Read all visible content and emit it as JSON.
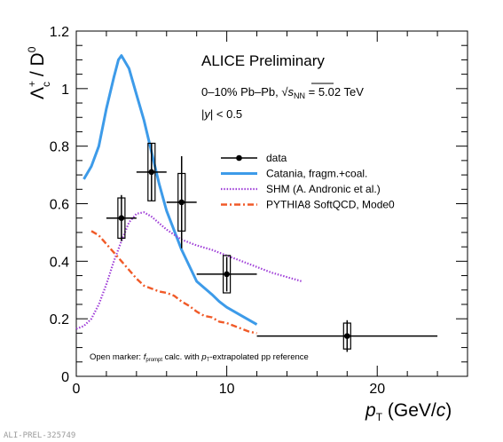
{
  "chart_data": {
    "type": "line",
    "title": "ALICE Preliminary",
    "annotations": {
      "collision_prefix": "0–10% Pb–Pb, ",
      "sqrt_symbol": "√",
      "sqrt_s": "s",
      "sqrt_sub": "NN",
      "energy": " = 5.02 TeV",
      "rapidity_prefix": "|",
      "rapidity_y": "y",
      "rapidity_suffix": "| < 0.5"
    },
    "footnote": {
      "part1": "Open marker: ",
      "f": "f",
      "f_sub": "prompt",
      "part2": " calc. with ",
      "p": "p",
      "p_sub": "T",
      "part3": "-extrapolated pp reference"
    },
    "watermark": "ALI-PREL-325749",
    "xlabel": {
      "main": "p",
      "sub": "T",
      "rest": " (GeV/",
      "c": "c",
      "close": ")"
    },
    "ylabel": {
      "lambda": "Λ",
      "sup": "+",
      "sub": "c",
      "rest": " / D",
      "d_sup": "0"
    },
    "xlim": [
      0,
      26
    ],
    "ylim": [
      0,
      1.2
    ],
    "xticks": [
      0,
      10,
      20
    ],
    "xtick_labels": [
      "0",
      "10",
      "20"
    ],
    "yticks": [
      0,
      0.2,
      0.4,
      0.6,
      0.8,
      1.0,
      1.2
    ],
    "ytick_labels": [
      "0",
      "0.2",
      "0.4",
      "0.6",
      "0.8",
      "1",
      "1.2"
    ],
    "legend_position": "center-right",
    "legend": [
      {
        "label": "data",
        "kind": "marker",
        "color": "#000000"
      },
      {
        "label": "Catania, fragm.+coal.",
        "kind": "solid",
        "color": "#3d9be9"
      },
      {
        "label": "SHM (A. Andronic et al.)",
        "kind": "dotted",
        "color": "#a040d8"
      },
      {
        "label": "PYTHIA8 SoftQCD, Mode0",
        "kind": "dashdot",
        "color": "#f05a28"
      }
    ],
    "series": [
      {
        "name": "data",
        "kind": "points",
        "color": "#000000",
        "points": [
          {
            "x": 3.0,
            "y": 0.55,
            "xerr": 1.0,
            "yerr": 0.08,
            "syst": 0.07
          },
          {
            "x": 5.0,
            "y": 0.71,
            "xerr": 1.0,
            "yerr": 0.1,
            "syst": 0.1
          },
          {
            "x": 7.0,
            "y": 0.605,
            "xerr": 1.0,
            "yerr": 0.16,
            "syst": 0.1
          },
          {
            "x": 10.0,
            "y": 0.355,
            "xerr": 2.0,
            "yerr": 0.06,
            "syst": 0.065
          },
          {
            "x": 18.0,
            "y": 0.14,
            "xerr": 6.0,
            "yerr": 0.055,
            "syst": 0.045
          }
        ]
      },
      {
        "name": "Catania, fragm.+coal.",
        "kind": "solid",
        "color": "#3d9be9",
        "x": [
          0.5,
          1.0,
          1.5,
          2.0,
          2.5,
          2.8,
          3.0,
          3.5,
          4.0,
          4.5,
          5.0,
          5.5,
          6.0,
          7.0,
          8.0,
          9.0,
          9.5,
          10.0,
          11.0,
          12.0
        ],
        "y": [
          0.685,
          0.73,
          0.8,
          0.93,
          1.04,
          1.1,
          1.115,
          1.07,
          0.98,
          0.89,
          0.78,
          0.67,
          0.575,
          0.44,
          0.33,
          0.285,
          0.26,
          0.24,
          0.21,
          0.18
        ]
      },
      {
        "name": "SHM (A. Andronic et al.)",
        "kind": "dotted",
        "color": "#a040d8",
        "x": [
          0.0,
          0.5,
          1.0,
          1.5,
          2.0,
          2.5,
          3.0,
          3.5,
          4.0,
          4.5,
          5.0,
          6.0,
          7.0,
          8.0,
          9.0,
          10.0,
          11.0,
          12.0,
          13.0,
          14.0,
          15.0
        ],
        "y": [
          0.165,
          0.175,
          0.2,
          0.25,
          0.32,
          0.4,
          0.47,
          0.535,
          0.565,
          0.57,
          0.555,
          0.51,
          0.475,
          0.455,
          0.44,
          0.42,
          0.4,
          0.38,
          0.36,
          0.345,
          0.33
        ]
      },
      {
        "name": "PYTHIA8 SoftQCD, Mode0",
        "kind": "dashdot",
        "color": "#f05a28",
        "x": [
          1.0,
          1.5,
          2.0,
          2.5,
          3.0,
          3.5,
          4.0,
          4.5,
          5.0,
          5.5,
          6.0,
          6.5,
          7.0,
          7.5,
          8.0,
          8.5,
          9.0,
          9.5,
          10.0,
          10.5,
          11.0,
          11.5,
          12.0
        ],
        "y": [
          0.505,
          0.49,
          0.46,
          0.43,
          0.4,
          0.37,
          0.34,
          0.315,
          0.305,
          0.295,
          0.29,
          0.28,
          0.26,
          0.245,
          0.225,
          0.21,
          0.205,
          0.19,
          0.185,
          0.175,
          0.165,
          0.155,
          0.15
        ]
      }
    ]
  }
}
